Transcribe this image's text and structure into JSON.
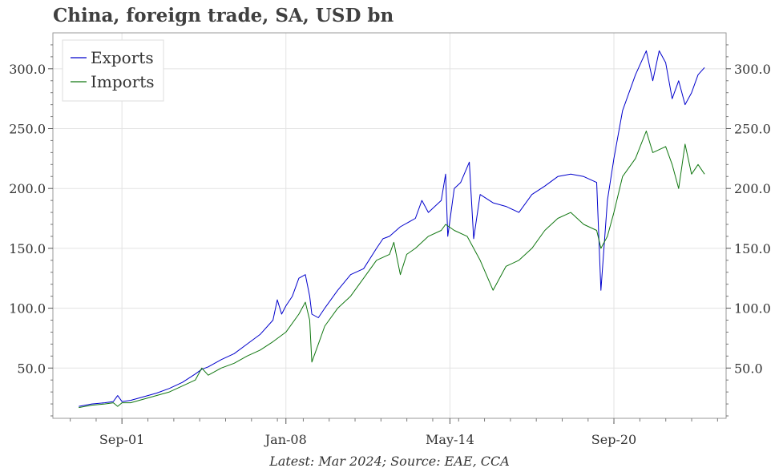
{
  "chart_data": {
    "type": "line",
    "title": "China, foreign trade, SA, USD bn",
    "caption": "Latest: Mar 2024; Source: EAE, CCA",
    "xlabel": "",
    "ylabel": "",
    "x_ticks": [
      "Sep-01",
      "Jan-08",
      "May-14",
      "Sep-20"
    ],
    "x_tick_dates": [
      "2001-09",
      "2008-01",
      "2014-05",
      "2020-09"
    ],
    "x_range": [
      "1999-01",
      "2025-01"
    ],
    "y_ticks": [
      "50.0",
      "100.0",
      "150.0",
      "200.0",
      "250.0",
      "300.0"
    ],
    "y_tick_values": [
      50,
      100,
      150,
      200,
      250,
      300
    ],
    "ylim": [
      8,
      330
    ],
    "grid": true,
    "legend_position": "top-left",
    "colors": {
      "exports": "#0000cc",
      "imports": "#117711"
    },
    "series": [
      {
        "name": "Exports",
        "points": [
          [
            "2000-01",
            18
          ],
          [
            "2000-07",
            20
          ],
          [
            "2001-01",
            21
          ],
          [
            "2001-05",
            22
          ],
          [
            "2001-07",
            27
          ],
          [
            "2001-09",
            22
          ],
          [
            "2002-01",
            23
          ],
          [
            "2002-07",
            26
          ],
          [
            "2003-01",
            29
          ],
          [
            "2003-07",
            33
          ],
          [
            "2004-01",
            38
          ],
          [
            "2004-07",
            45
          ],
          [
            "2004-10",
            49
          ],
          [
            "2005-01",
            51
          ],
          [
            "2005-07",
            57
          ],
          [
            "2006-01",
            62
          ],
          [
            "2006-07",
            70
          ],
          [
            "2007-01",
            78
          ],
          [
            "2007-07",
            90
          ],
          [
            "2007-09",
            107
          ],
          [
            "2007-11",
            95
          ],
          [
            "2008-01",
            102
          ],
          [
            "2008-04",
            110
          ],
          [
            "2008-07",
            125
          ],
          [
            "2008-10",
            128
          ],
          [
            "2008-12",
            110
          ],
          [
            "2009-01",
            95
          ],
          [
            "2009-04",
            92
          ],
          [
            "2009-07",
            100
          ],
          [
            "2010-01",
            115
          ],
          [
            "2010-07",
            128
          ],
          [
            "2011-01",
            133
          ],
          [
            "2011-07",
            150
          ],
          [
            "2011-10",
            158
          ],
          [
            "2012-01",
            160
          ],
          [
            "2012-06",
            168
          ],
          [
            "2013-01",
            175
          ],
          [
            "2013-04",
            190
          ],
          [
            "2013-07",
            180
          ],
          [
            "2014-01",
            190
          ],
          [
            "2014-03",
            212
          ],
          [
            "2014-04",
            160
          ],
          [
            "2014-07",
            200
          ],
          [
            "2014-10",
            205
          ],
          [
            "2015-02",
            222
          ],
          [
            "2015-04",
            158
          ],
          [
            "2015-07",
            195
          ],
          [
            "2016-01",
            188
          ],
          [
            "2016-07",
            185
          ],
          [
            "2017-01",
            180
          ],
          [
            "2017-07",
            195
          ],
          [
            "2018-01",
            202
          ],
          [
            "2018-07",
            210
          ],
          [
            "2019-01",
            212
          ],
          [
            "2019-07",
            210
          ],
          [
            "2020-01",
            205
          ],
          [
            "2020-03",
            115
          ],
          [
            "2020-06",
            190
          ],
          [
            "2020-09",
            225
          ],
          [
            "2021-01",
            265
          ],
          [
            "2021-07",
            295
          ],
          [
            "2021-12",
            315
          ],
          [
            "2022-03",
            290
          ],
          [
            "2022-06",
            315
          ],
          [
            "2022-09",
            305
          ],
          [
            "2022-12",
            275
          ],
          [
            "2023-03",
            290
          ],
          [
            "2023-06",
            270
          ],
          [
            "2023-09",
            280
          ],
          [
            "2023-12",
            295
          ],
          [
            "2024-03",
            301
          ]
        ]
      },
      {
        "name": "Imports",
        "points": [
          [
            "2000-01",
            17
          ],
          [
            "2000-07",
            19
          ],
          [
            "2001-01",
            20
          ],
          [
            "2001-05",
            21
          ],
          [
            "2001-07",
            18
          ],
          [
            "2001-09",
            21
          ],
          [
            "2002-01",
            21
          ],
          [
            "2002-07",
            24
          ],
          [
            "2003-01",
            27
          ],
          [
            "2003-07",
            30
          ],
          [
            "2004-01",
            35
          ],
          [
            "2004-07",
            40
          ],
          [
            "2004-10",
            50
          ],
          [
            "2005-01",
            44
          ],
          [
            "2005-07",
            50
          ],
          [
            "2006-01",
            54
          ],
          [
            "2006-07",
            60
          ],
          [
            "2007-01",
            65
          ],
          [
            "2007-07",
            72
          ],
          [
            "2008-01",
            80
          ],
          [
            "2008-07",
            95
          ],
          [
            "2008-10",
            105
          ],
          [
            "2008-12",
            90
          ],
          [
            "2009-01",
            55
          ],
          [
            "2009-04",
            70
          ],
          [
            "2009-07",
            85
          ],
          [
            "2010-01",
            100
          ],
          [
            "2010-07",
            110
          ],
          [
            "2011-01",
            125
          ],
          [
            "2011-07",
            140
          ],
          [
            "2012-01",
            145
          ],
          [
            "2012-03",
            155
          ],
          [
            "2012-06",
            128
          ],
          [
            "2012-09",
            145
          ],
          [
            "2013-01",
            150
          ],
          [
            "2013-07",
            160
          ],
          [
            "2014-01",
            165
          ],
          [
            "2014-03",
            170
          ],
          [
            "2014-07",
            165
          ],
          [
            "2015-01",
            160
          ],
          [
            "2015-07",
            140
          ],
          [
            "2016-01",
            115
          ],
          [
            "2016-07",
            135
          ],
          [
            "2017-01",
            140
          ],
          [
            "2017-07",
            150
          ],
          [
            "2018-01",
            165
          ],
          [
            "2018-07",
            175
          ],
          [
            "2019-01",
            180
          ],
          [
            "2019-07",
            170
          ],
          [
            "2020-01",
            165
          ],
          [
            "2020-03",
            150
          ],
          [
            "2020-06",
            160
          ],
          [
            "2020-09",
            180
          ],
          [
            "2021-01",
            210
          ],
          [
            "2021-07",
            225
          ],
          [
            "2021-12",
            248
          ],
          [
            "2022-03",
            230
          ],
          [
            "2022-09",
            235
          ],
          [
            "2022-12",
            220
          ],
          [
            "2023-03",
            200
          ],
          [
            "2023-06",
            237
          ],
          [
            "2023-09",
            212
          ],
          [
            "2023-12",
            220
          ],
          [
            "2024-03",
            212
          ]
        ]
      }
    ]
  }
}
